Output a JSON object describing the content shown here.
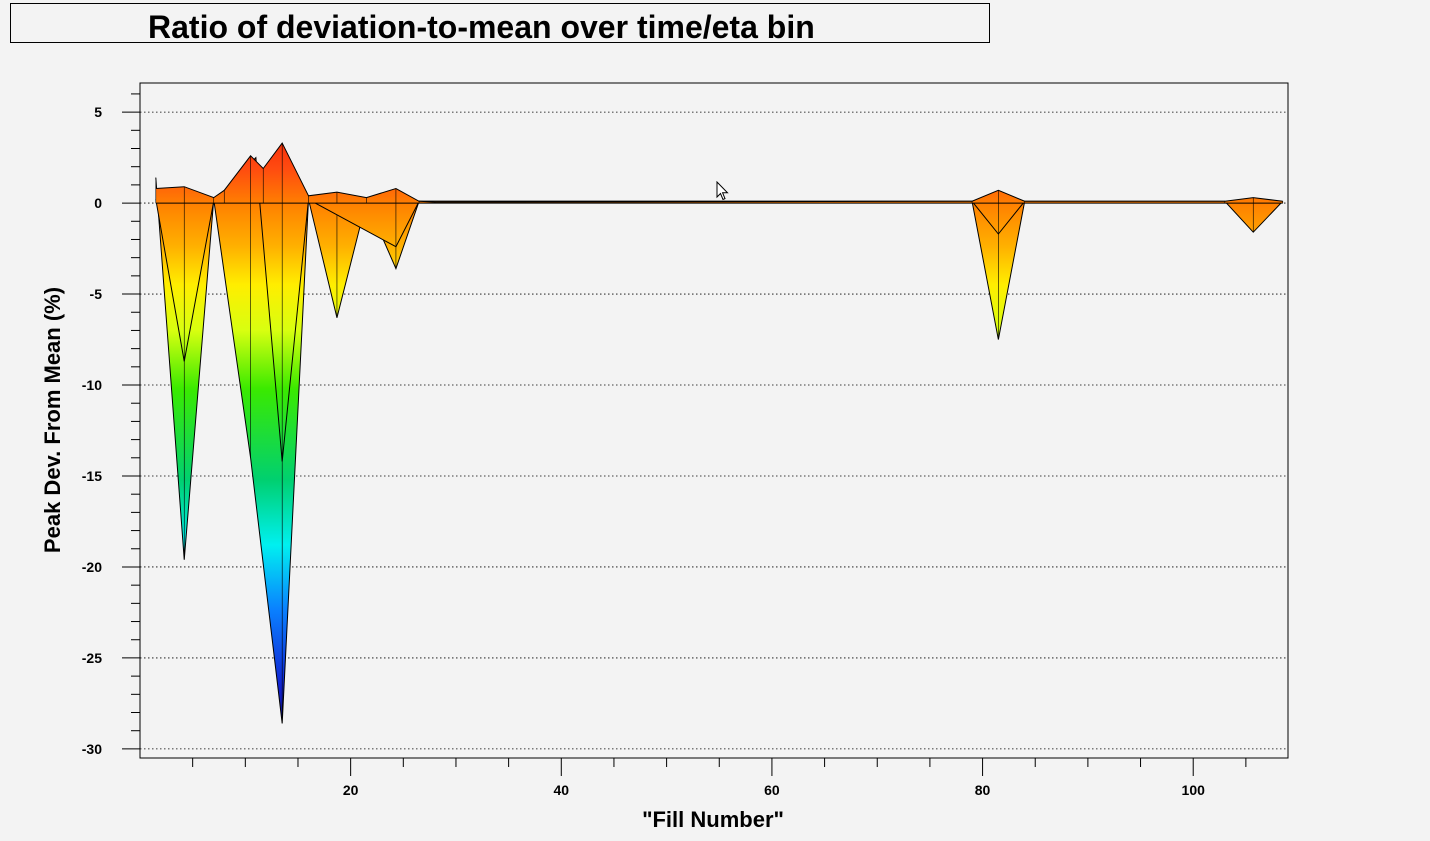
{
  "chart_data": {
    "type": "area",
    "title": "Ratio of deviation-to-mean over time/eta bin",
    "xlabel": "\"Fill Number\"",
    "ylabel": "Peak Dev. From Mean (%)",
    "xlim": [
      0,
      109
    ],
    "ylim": [
      -30.5,
      6.6
    ],
    "xticks": [
      20,
      40,
      60,
      80,
      100
    ],
    "yticks": [
      5,
      0,
      -5,
      -10,
      -15,
      -20,
      -25,
      -30
    ],
    "grid": "horizontal-dotted",
    "color_scale": "rainbow",
    "series": [
      {
        "points": [
          [
            1.5,
            0.2
          ],
          [
            4.2,
            -8.7
          ],
          [
            7,
            0.1
          ],
          [
            11,
            2.5
          ],
          [
            13.5,
            -14.2
          ],
          [
            16,
            0.2
          ],
          [
            24.3,
            -2.4
          ],
          [
            26.5,
            0.1
          ],
          [
            79,
            0.1
          ],
          [
            81.5,
            -1.7
          ],
          [
            84,
            0.1
          ],
          [
            103,
            0.1
          ],
          [
            105.7,
            -1.6
          ],
          [
            108.5,
            0.1
          ]
        ]
      },
      {
        "points": [
          [
            1.5,
            1.4
          ],
          [
            4.2,
            -19.6
          ],
          [
            7,
            0.2
          ],
          [
            10.5,
            -14
          ],
          [
            13.5,
            -28.6
          ],
          [
            16,
            0.2
          ],
          [
            18.7,
            -6.3
          ],
          [
            21.5,
            0.1
          ],
          [
            24.3,
            -3.6
          ],
          [
            26.5,
            0.1
          ],
          [
            79,
            0.1
          ],
          [
            81.5,
            -7.5
          ],
          [
            84,
            0.1
          ]
        ]
      },
      {
        "points": [
          [
            1.5,
            0.8
          ],
          [
            4.2,
            0.9
          ],
          [
            7,
            0.3
          ],
          [
            8,
            0.7
          ],
          [
            10.5,
            2.6
          ],
          [
            11.7,
            1.9
          ],
          [
            13.5,
            3.3
          ],
          [
            16,
            0.4
          ],
          [
            18.7,
            0.6
          ],
          [
            21.5,
            0.3
          ],
          [
            24.3,
            0.8
          ],
          [
            26.5,
            0.1
          ],
          [
            28,
            0.05
          ],
          [
            79,
            0.1
          ],
          [
            81.5,
            0.7
          ],
          [
            84,
            0.1
          ],
          [
            103,
            0.1
          ],
          [
            105.7,
            0.3
          ],
          [
            108.5,
            0.1
          ]
        ]
      }
    ]
  }
}
